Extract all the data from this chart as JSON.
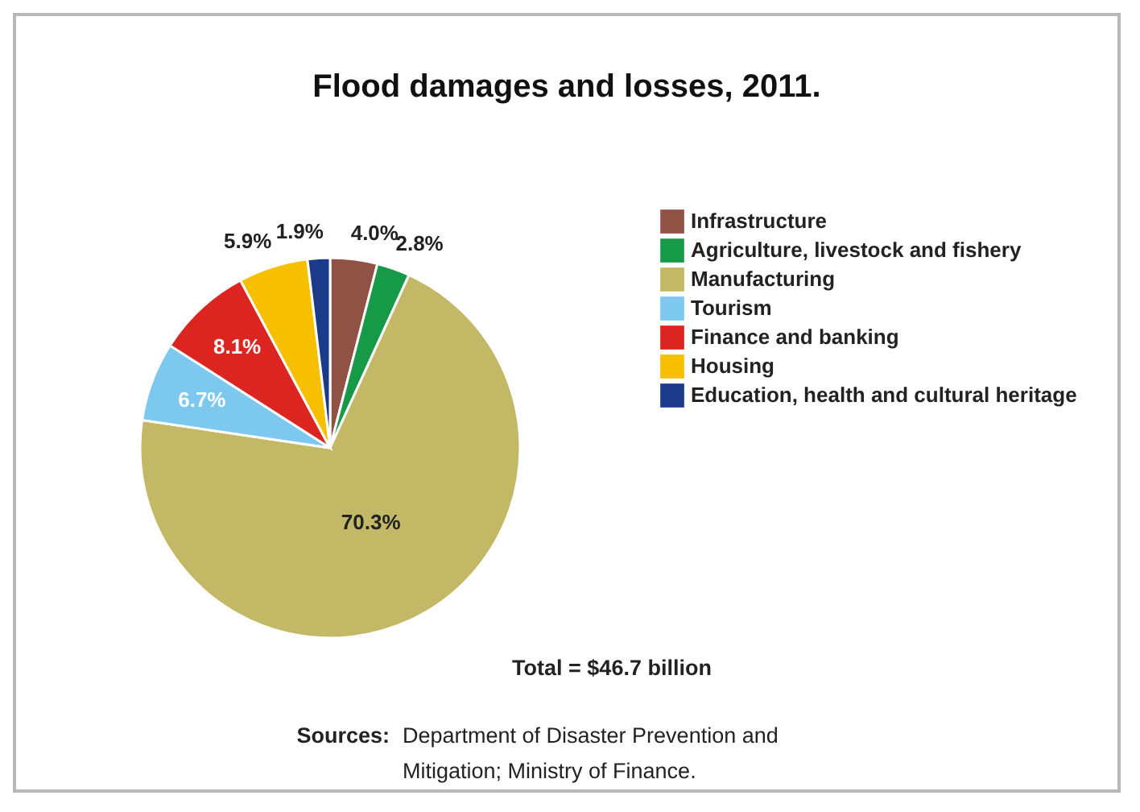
{
  "chart_data": {
    "type": "pie",
    "title": "Flood damages and losses, 2011.",
    "categories": [
      "Infrastructure",
      "Agriculture, livestock and fishery",
      "Manufacturing",
      "Tourism",
      "Finance and banking",
      "Housing",
      "Education, health and cultural heritage"
    ],
    "values": [
      4.0,
      2.8,
      70.3,
      6.7,
      8.1,
      5.9,
      1.9
    ],
    "value_labels": [
      "4.0%",
      "2.8%",
      "70.3%",
      "6.7%",
      "8.1%",
      "5.9%",
      "1.9%"
    ],
    "colors": [
      "#8f5245",
      "#179a48",
      "#c2b866",
      "#7cc8ee",
      "#dc2420",
      "#f6c000",
      "#1b3a8a"
    ],
    "legend": "right",
    "annotations": [
      "Total = $46.7 billion",
      "Sources:",
      "Department of Disaster Prevention and Mitigation; Ministry of Finance."
    ]
  }
}
